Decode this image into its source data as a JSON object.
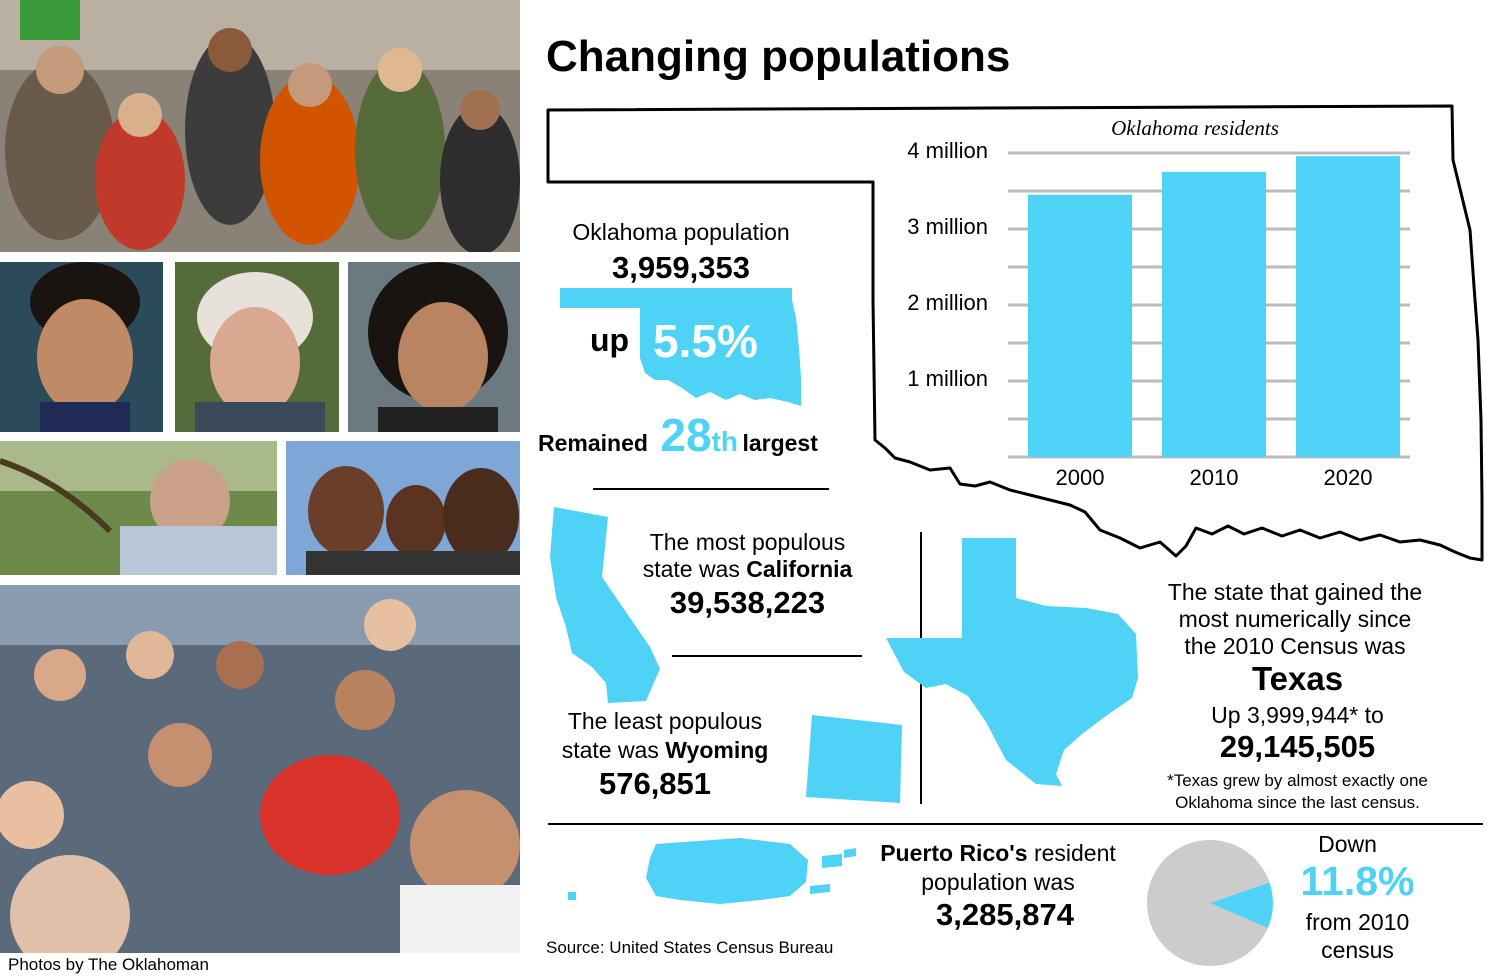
{
  "title": "Changing populations",
  "photo_credit": "Photos by The Oklahoman",
  "source": "Source: United States Census Bureau",
  "colors": {
    "accent": "#4ed2f6",
    "grey": "#cccccc",
    "grid": "#bbbbbb"
  },
  "oklahoma": {
    "label": "Oklahoma population",
    "population": "3,959,353",
    "up_word": "up",
    "change": "5.5%",
    "rank_pre": "Remained",
    "rank_num": "28",
    "rank_suffix": "th",
    "rank_post": "largest"
  },
  "california": {
    "line1": "The most populous",
    "line2_pre": "state was ",
    "line2_name": "California",
    "population": "39,538,223"
  },
  "wyoming": {
    "line1": "The least populous",
    "line2_pre": "state was ",
    "line2_name": "Wyoming",
    "population": "576,851"
  },
  "texas": {
    "line1": "The state that gained the",
    "line2": "most numerically since",
    "line3": "the 2010 Census was",
    "name": "Texas",
    "gain": "Up 3,999,944* to",
    "population": "29,145,505",
    "note1": "*Texas grew by almost exactly one",
    "note2": "Oklahoma since the last census."
  },
  "puerto_rico": {
    "name": "Puerto Rico's",
    "line1_post": " resident",
    "line2": "population was",
    "population": "3,285,874"
  },
  "pr_change": {
    "down": "Down",
    "value": "11.8%",
    "from1": "from 2010",
    "from2": "census"
  },
  "chart_data": [
    {
      "type": "bar",
      "title": "Oklahoma residents",
      "categories": [
        "2000",
        "2010",
        "2020"
      ],
      "values": [
        3450654,
        3751351,
        3959353
      ],
      "ylim": [
        0,
        4000000
      ],
      "yticks": [
        {
          "value": 1000000,
          "label": "1 million"
        },
        {
          "value": 2000000,
          "label": "2 million"
        },
        {
          "value": 3000000,
          "label": "3 million"
        },
        {
          "value": 4000000,
          "label": "4 million"
        }
      ],
      "minor_ticks": [
        500000,
        1500000,
        2500000,
        3500000
      ],
      "grid": true
    },
    {
      "type": "pie",
      "values": [
        88.2,
        11.8
      ],
      "labels": [
        "",
        "11.8%"
      ],
      "highlight": 1
    }
  ]
}
